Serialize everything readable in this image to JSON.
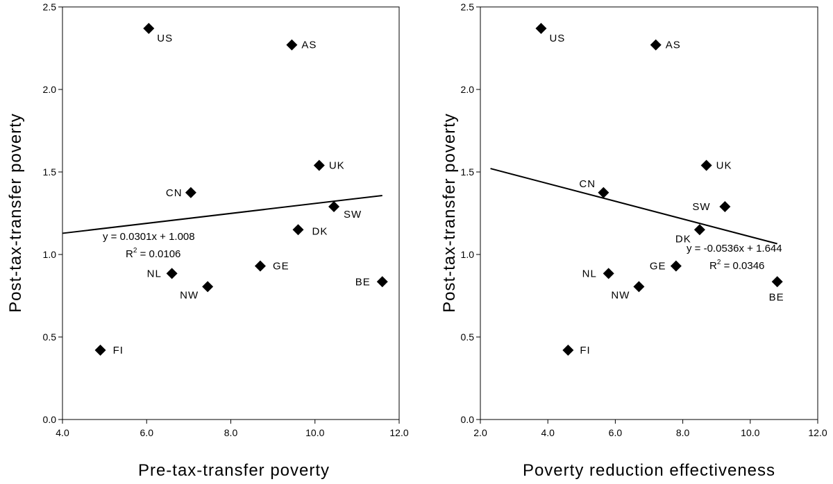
{
  "chart_data": [
    {
      "type": "scatter",
      "title": "",
      "xlabel": "Pre-tax-transfer poverty",
      "ylabel": "Post-tax-transfer poverty",
      "xlim": [
        4.0,
        12.0
      ],
      "ylim": [
        0.0,
        2.5
      ],
      "x_ticks": [
        "4.0",
        "6.0",
        "8.0",
        "10.0",
        "12.0"
      ],
      "y_ticks": [
        "0.0",
        "0.5",
        "1.0",
        "1.5",
        "2.0",
        "2.5"
      ],
      "grid": false,
      "marker": "diamond",
      "marker_color": "#000000",
      "points": [
        {
          "label": "US",
          "x": 6.05,
          "y": 2.37
        },
        {
          "label": "AS",
          "x": 9.45,
          "y": 2.27
        },
        {
          "label": "UK",
          "x": 10.1,
          "y": 1.54
        },
        {
          "label": "CN",
          "x": 7.05,
          "y": 1.375
        },
        {
          "label": "SW",
          "x": 10.45,
          "y": 1.29
        },
        {
          "label": "DK",
          "x": 9.6,
          "y": 1.15
        },
        {
          "label": "GE",
          "x": 8.7,
          "y": 0.93
        },
        {
          "label": "NL",
          "x": 6.6,
          "y": 0.885
        },
        {
          "label": "NW",
          "x": 7.45,
          "y": 0.805
        },
        {
          "label": "BE",
          "x": 11.6,
          "y": 0.835
        },
        {
          "label": "FI",
          "x": 4.9,
          "y": 0.42
        }
      ],
      "trendline": {
        "slope": 0.0301,
        "intercept": 1.008,
        "x_range": [
          4.0,
          11.6
        ]
      },
      "equation_text": "y = 0.0301x + 1.008",
      "r2_prefix": "R",
      "r2_sup": "2",
      "r2_value": " = 0.0106"
    },
    {
      "type": "scatter",
      "title": "",
      "xlabel": "Poverty reduction effectiveness",
      "ylabel": "Post-tax-transfer poverty",
      "xlim": [
        2.0,
        12.0
      ],
      "ylim": [
        0.0,
        2.5
      ],
      "x_ticks": [
        "2.0",
        "4.0",
        "6.0",
        "8.0",
        "10.0",
        "12.0"
      ],
      "y_ticks": [
        "0.0",
        "0.5",
        "1.0",
        "1.5",
        "2.0",
        "2.5"
      ],
      "grid": false,
      "marker": "diamond",
      "marker_color": "#000000",
      "points": [
        {
          "label": "US",
          "x": 3.8,
          "y": 2.37
        },
        {
          "label": "AS",
          "x": 7.2,
          "y": 2.27
        },
        {
          "label": "UK",
          "x": 8.7,
          "y": 1.54
        },
        {
          "label": "CN",
          "x": 5.65,
          "y": 1.375
        },
        {
          "label": "SW",
          "x": 9.25,
          "y": 1.29
        },
        {
          "label": "DK",
          "x": 8.5,
          "y": 1.15
        },
        {
          "label": "GE",
          "x": 7.8,
          "y": 0.93
        },
        {
          "label": "NL",
          "x": 5.8,
          "y": 0.885
        },
        {
          "label": "NW",
          "x": 6.7,
          "y": 0.805
        },
        {
          "label": "BE",
          "x": 10.8,
          "y": 0.835
        },
        {
          "label": "FI",
          "x": 4.6,
          "y": 0.42
        }
      ],
      "trendline": {
        "slope": -0.0536,
        "intercept": 1.644,
        "x_range": [
          2.3,
          10.8
        ]
      },
      "equation_text": "y = -0.0536x + 1.644",
      "r2_prefix": "R",
      "r2_sup": "2",
      "r2_value": " = 0.0346"
    }
  ]
}
